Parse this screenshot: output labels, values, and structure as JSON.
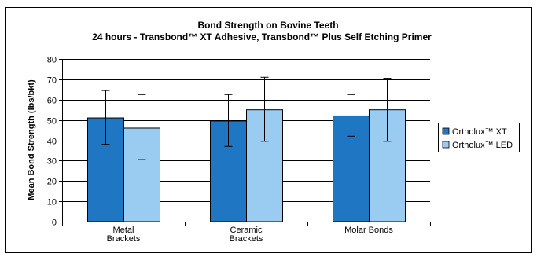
{
  "chart_data": {
    "type": "bar",
    "title": "Bond Strength on Bovine Teeth",
    "subtitle": "24 hours - Transbond™ XT Adhesive, Transbond™ Plus Self Etching Primer",
    "ylabel": "Mean Bond Strength (lbs/bkt)",
    "xlabel": "",
    "ylim": [
      0,
      80
    ],
    "yticks": [
      0,
      10,
      20,
      30,
      40,
      50,
      60,
      70,
      80
    ],
    "grid": true,
    "legend_position": "right",
    "categories": [
      [
        "Metal",
        "Brackets"
      ],
      [
        "Ceramic",
        "Brackets"
      ],
      [
        "Molar Bonds"
      ]
    ],
    "series": [
      {
        "name": "Ortholux™ XT",
        "color": "#1f77c4",
        "values": [
          51,
          49.5,
          52
        ],
        "error_low": [
          38,
          37,
          42
        ],
        "error_high": [
          64.5,
          62.5,
          62.5
        ]
      },
      {
        "name": "Ortholux™ LED",
        "color": "#99ccf0",
        "values": [
          46,
          55,
          55
        ],
        "error_low": [
          30.5,
          39.5,
          39.5
        ],
        "error_high": [
          62.5,
          71,
          70.5
        ]
      }
    ]
  }
}
